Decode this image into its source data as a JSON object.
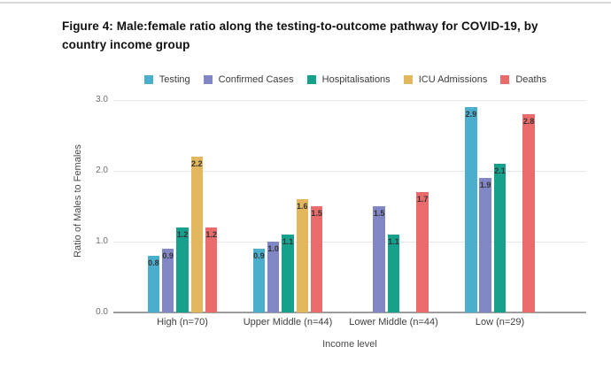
{
  "page": {
    "title_line1": "Figure 4: Male:female ratio along the testing-to-outcome pathway for COVID-19, by",
    "title_line2": "country income group"
  },
  "chart_data": {
    "type": "bar",
    "title": "Figure 4: Male:female ratio along the testing-to-outcome pathway for COVID-19, by country income group",
    "categories": [
      "High (n=70)",
      "Upper Middle (n=44)",
      "Lower Middle (n=44)",
      "Low (n=29)"
    ],
    "series": [
      {
        "name": "Testing",
        "color": "#4BAECD",
        "values": [
          0.8,
          0.9,
          null,
          2.9
        ]
      },
      {
        "name": "Confirmed Cases",
        "color": "#8187C4",
        "values": [
          0.9,
          1.0,
          1.5,
          1.9
        ]
      },
      {
        "name": "Hospitalisations",
        "color": "#17A08C",
        "values": [
          1.2,
          1.1,
          1.1,
          2.1
        ]
      },
      {
        "name": "ICU Admissions",
        "color": "#E2B75D",
        "values": [
          2.2,
          1.6,
          null,
          null
        ]
      },
      {
        "name": "Deaths",
        "color": "#E96B6B",
        "values": [
          1.2,
          1.5,
          1.7,
          2.8
        ]
      }
    ],
    "xlabel": "Income level",
    "ylabel": "Ratio of Males to Females",
    "ylim": [
      0.0,
      3.0
    ],
    "yticks": [
      0.0,
      1.0,
      2.0,
      3.0
    ],
    "grid": true,
    "legend_position": "top",
    "data_labels": true
  }
}
